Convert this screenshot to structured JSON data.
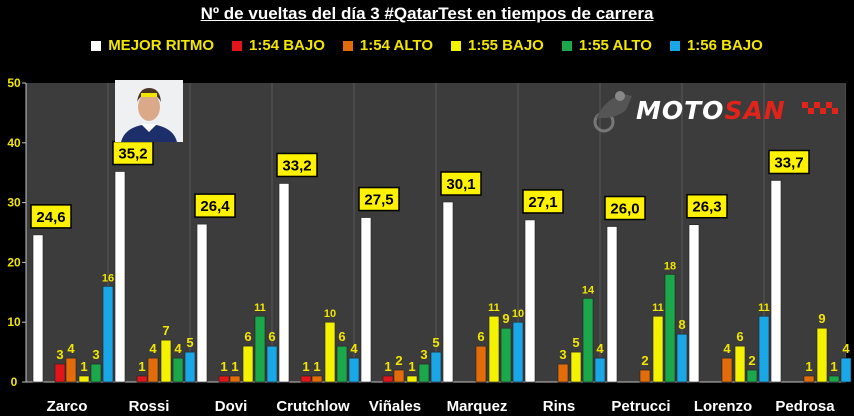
{
  "title": "Nº de vueltas del día 3 #QatarTest en tiempos de carrera",
  "logo": {
    "part1": "MOTO",
    "part2": "SAN"
  },
  "chart_data": {
    "type": "bar",
    "title": "Nº de vueltas del día 3 #QatarTest en tiempos de carrera",
    "xlabel": "",
    "ylabel": "",
    "ylim": [
      0,
      50
    ],
    "yticks": [
      0,
      10,
      20,
      30,
      40,
      50
    ],
    "grid": false,
    "legend_position": "top",
    "categories": [
      "Zarco",
      "Rossi",
      "Dovi",
      "Crutchlow",
      "Viñales",
      "Marquez",
      "Rins",
      "Petrucci",
      "Lorenzo",
      "Pedrosa"
    ],
    "series": [
      {
        "name": "MEJOR RITMO",
        "color": "#ffffff",
        "labels": [
          "24,6",
          "35,2",
          "26,4",
          "33,2",
          "27,5",
          "30,1",
          "27,1",
          "26,0",
          "26,3",
          "33,7"
        ],
        "values": [
          24.6,
          35.2,
          26.4,
          33.2,
          27.5,
          30.1,
          27.1,
          26.0,
          26.3,
          33.7
        ]
      },
      {
        "name": "1:54 BAJO",
        "color": "#e2161a",
        "values": [
          3,
          1,
          1,
          1,
          1,
          null,
          null,
          null,
          null,
          null
        ]
      },
      {
        "name": "1:54 ALTO",
        "color": "#e36c0a",
        "values": [
          4,
          4,
          1,
          1,
          2,
          6,
          3,
          2,
          4,
          1
        ]
      },
      {
        "name": "1:55 BAJO",
        "color": "#f5f200",
        "values": [
          1,
          7,
          6,
          10,
          1,
          11,
          5,
          11,
          6,
          9
        ]
      },
      {
        "name": "1:55 ALTO",
        "color": "#1aa84a",
        "values": [
          3,
          4,
          11,
          6,
          3,
          9,
          14,
          18,
          2,
          1
        ]
      },
      {
        "name": "1:56 BAJO",
        "color": "#1aa7e8",
        "values": [
          16,
          5,
          6,
          4,
          5,
          10,
          4,
          8,
          11,
          4
        ]
      }
    ]
  }
}
